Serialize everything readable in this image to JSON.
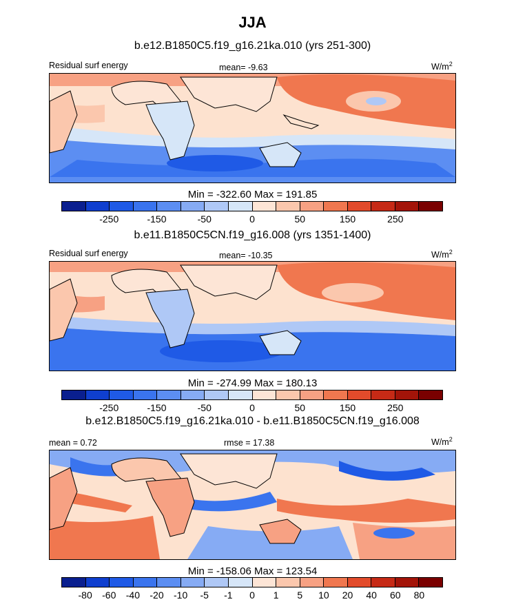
{
  "title": "JJA",
  "panels": [
    {
      "subtitle": "b.e12.B1850C5.f19_g16.21ka.010 (yrs 251-300)",
      "left_label": "Residual surf energy",
      "center_label": "mean=  -9.63",
      "right_label_base": "W/m",
      "right_label_sup": "2",
      "minmax": "Min = -322.60 Max = 191.85",
      "ticks": [
        "-250",
        "-150",
        "-50",
        "0",
        "50",
        "150",
        "250"
      ]
    },
    {
      "subtitle": "b.e11.B1850C5CN.f19_g16.008 (yrs 1351-1400)",
      "left_label": "Residual surf energy",
      "center_label": "mean= -10.35",
      "right_label_base": "W/m",
      "right_label_sup": "2",
      "minmax": "Min = -274.99 Max = 180.13",
      "ticks": [
        "-250",
        "-150",
        "-50",
        "0",
        "50",
        "150",
        "250"
      ]
    },
    {
      "subtitle": "b.e12.B1850C5.f19_g16.21ka.010 - b.e11.B1850C5CN.f19_g16.008",
      "left_label": "mean =   0.72",
      "center_label": "rmse =  17.38",
      "right_label_base": "W/m",
      "right_label_sup": "2",
      "minmax": "Min = -158.06 Max = 123.54",
      "ticks": [
        "-80",
        "-60",
        "-40",
        "-20",
        "-10",
        "-5",
        "-1",
        "0",
        "1",
        "5",
        "10",
        "20",
        "40",
        "60",
        "80"
      ]
    }
  ],
  "colorbar_colors": [
    "#0a1f8f",
    "#0f3fcf",
    "#1f5ae6",
    "#3a74ee",
    "#5c8ef2",
    "#86abf4",
    "#afc8f6",
    "#d6e6f8",
    "#fde5d6",
    "#fbc7ad",
    "#f7a183",
    "#f0774f",
    "#e24b2b",
    "#c62a16",
    "#a31409",
    "#7a0000"
  ]
}
